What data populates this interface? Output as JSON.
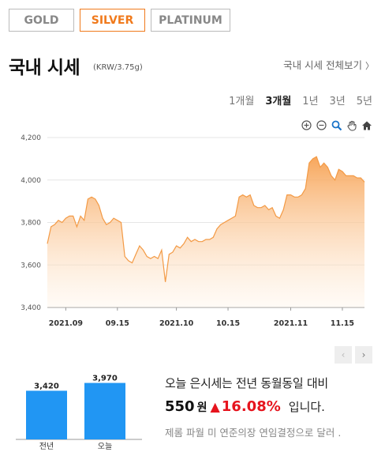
{
  "tabs": [
    {
      "label": "GOLD",
      "active": false
    },
    {
      "label": "SILVER",
      "active": true
    },
    {
      "label": "PLATINUM",
      "active": false
    }
  ],
  "header": {
    "title": "국내 시세",
    "unit": "(KRW/3.75g)",
    "view_all": "국내 시세 전체보기",
    "view_all_arrow": "〉"
  },
  "ranges": [
    {
      "label": "1개월",
      "active": false
    },
    {
      "label": "3개월",
      "active": true
    },
    {
      "label": "1년",
      "active": false
    },
    {
      "label": "3년",
      "active": false
    },
    {
      "label": "5년",
      "active": false
    }
  ],
  "tools": [
    "zoom-in-icon",
    "zoom-out-icon",
    "magnify-icon",
    "hand-icon",
    "home-icon"
  ],
  "colors": {
    "accent": "#f07a1c",
    "up": "#e6141e",
    "area_top": "#f7a253",
    "bar": "#2196f3"
  },
  "chart_data": [
    {
      "type": "area",
      "ylim": [
        3400,
        4200
      ],
      "yticks": [
        3400,
        3600,
        3800,
        4000,
        4200
      ],
      "ytick_labels": [
        "3,400",
        "3,600",
        "3,800",
        "4,000",
        "4,200"
      ],
      "xticks": [
        {
          "label": "2021.09",
          "day": 0
        },
        {
          "label": "09.15",
          "day": 14
        },
        {
          "label": "2021.10",
          "day": 30
        },
        {
          "label": "10.15",
          "day": 44
        },
        {
          "label": "2021.11",
          "day": 61
        },
        {
          "label": "11.15",
          "day": 75
        }
      ],
      "x": [
        -5,
        -4,
        -3,
        -2,
        -1,
        0,
        1,
        2,
        3,
        4,
        5,
        6,
        7,
        8,
        9,
        10,
        11,
        12,
        13,
        14,
        15,
        16,
        17,
        18,
        19,
        20,
        21,
        22,
        23,
        24,
        25,
        26,
        27,
        28,
        29,
        30,
        31,
        32,
        33,
        34,
        35,
        36,
        37,
        38,
        39,
        40,
        41,
        42,
        43,
        44,
        45,
        46,
        47,
        48,
        49,
        50,
        51,
        52,
        53,
        54,
        55,
        56,
        57,
        58,
        59,
        60,
        61,
        62,
        63,
        64,
        65,
        66,
        67,
        68,
        69,
        70,
        71,
        72,
        73,
        74,
        75,
        76,
        77,
        78,
        79,
        80,
        81
      ],
      "values": [
        3700,
        3780,
        3790,
        3810,
        3800,
        3820,
        3830,
        3830,
        3780,
        3830,
        3810,
        3910,
        3920,
        3910,
        3880,
        3820,
        3790,
        3800,
        3820,
        3810,
        3800,
        3640,
        3620,
        3610,
        3650,
        3690,
        3670,
        3640,
        3630,
        3640,
        3630,
        3670,
        3520,
        3650,
        3660,
        3690,
        3680,
        3700,
        3730,
        3710,
        3720,
        3710,
        3710,
        3720,
        3720,
        3730,
        3770,
        3790,
        3800,
        3810,
        3820,
        3830,
        3920,
        3930,
        3920,
        3930,
        3880,
        3870,
        3870,
        3880,
        3860,
        3870,
        3830,
        3820,
        3860,
        3930,
        3930,
        3920,
        3920,
        3930,
        3960,
        4080,
        4100,
        4110,
        4060,
        4080,
        4060,
        4020,
        4000,
        4050,
        4040,
        4020,
        4020,
        4020,
        4010,
        4010,
        3990
      ],
      "xlim": [
        -5,
        81
      ]
    },
    {
      "type": "bar",
      "categories": [
        "전년",
        "오늘"
      ],
      "values": [
        3420,
        3970
      ],
      "value_labels": [
        "3,420",
        "3,970"
      ]
    }
  ],
  "summary": {
    "line1": "오늘 은시세는 전년 동월동일 대비",
    "diff": "550",
    "won": "원",
    "arrow": "▲",
    "pct": "16.08%",
    "tail": "입니다.",
    "news": "제롬 파월 미 연준의장 연임결정으로 달러 ."
  },
  "pager": {
    "prev": "‹",
    "next": "›"
  }
}
